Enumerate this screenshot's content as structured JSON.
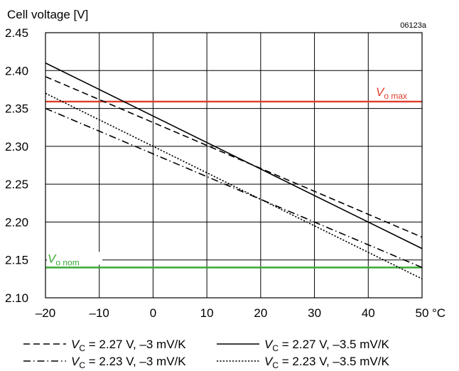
{
  "chart_data": {
    "type": "line",
    "title": "",
    "ylabel": "Cell voltage [V]",
    "xlabel": "",
    "x_unit": "°C",
    "figure_code": "06123a",
    "xlim": [
      -20,
      50
    ],
    "ylim": [
      2.1,
      2.45
    ],
    "x_ticks": [
      -20,
      -10,
      0,
      10,
      20,
      30,
      40,
      50
    ],
    "x_tick_labels": [
      "–20",
      "–10",
      "0",
      "10",
      "20",
      "30",
      "40",
      "50"
    ],
    "y_ticks": [
      2.1,
      2.15,
      2.2,
      2.25,
      2.3,
      2.35,
      2.4,
      2.45
    ],
    "y_tick_labels": [
      "2.10",
      "2.15",
      "2.20",
      "2.25",
      "2.30",
      "2.35",
      "2.40",
      "2.45"
    ],
    "grid": true,
    "series": [
      {
        "label_v": "V",
        "label_sub": "C",
        "label_rest": " = 2.27 V, –3 mV/K",
        "style": "dashed",
        "color": "#000000",
        "x": [
          -20,
          50
        ],
        "y": [
          2.392,
          2.18
        ]
      },
      {
        "label_v": "V",
        "label_sub": "C",
        "label_rest": " = 2.27 V, –3.5 mV/K",
        "style": "solid",
        "color": "#000000",
        "x": [
          -20,
          50
        ],
        "y": [
          2.41,
          2.165
        ]
      },
      {
        "label_v": "V",
        "label_sub": "C",
        "label_rest": " = 2.23 V, –3 mV/K",
        "style": "dashdot",
        "color": "#000000",
        "x": [
          -20,
          50
        ],
        "y": [
          2.35,
          2.14
        ]
      },
      {
        "label_v": "V",
        "label_sub": "C",
        "label_rest": " = 2.23 V, –3.5 mV/K",
        "style": "dotted",
        "color": "#000000",
        "x": [
          -20,
          50
        ],
        "y": [
          2.37,
          2.125
        ]
      }
    ],
    "reference_lines": [
      {
        "label_v": "V",
        "label_sub": "o max",
        "y": 2.359,
        "color": "#e03c2a"
      },
      {
        "label_v": "V",
        "label_sub": "o nom",
        "y": 2.14,
        "color": "#3aaa35"
      }
    ],
    "legend_position": "bottom"
  }
}
